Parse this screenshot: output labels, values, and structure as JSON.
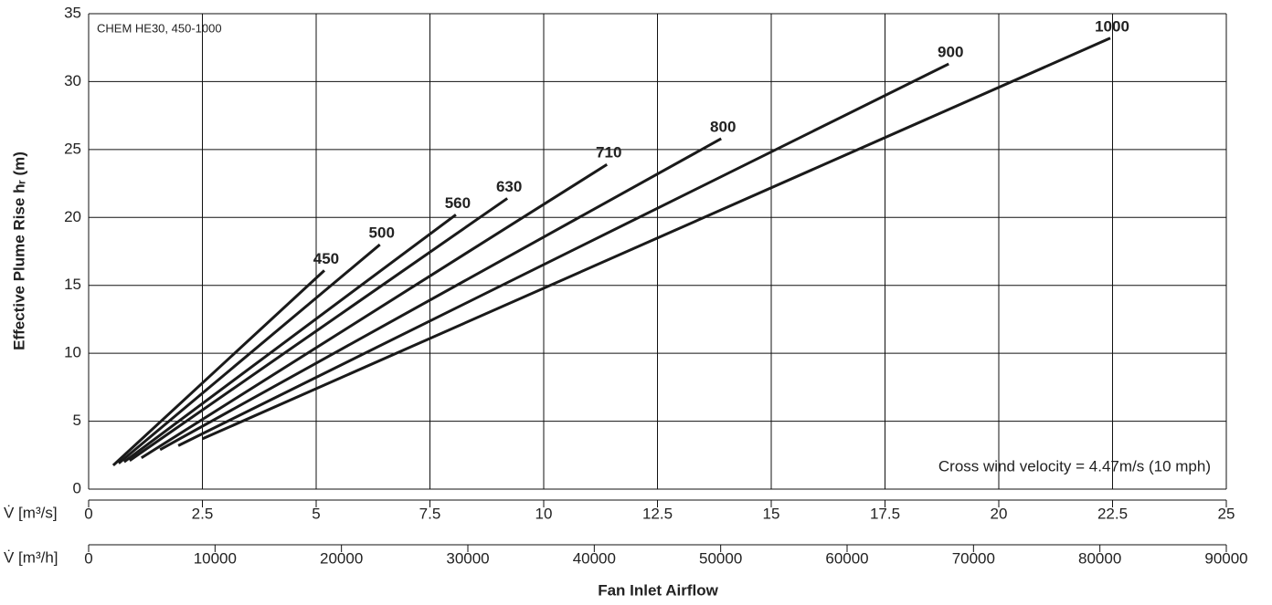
{
  "chart_data": {
    "type": "line",
    "y_label": "Effective Plume Rise hᵣ (m)",
    "x_label": "Fan Inlet Airflow",
    "x_axis_label": "V̇ [m³/s]",
    "x2_axis_label": "V̇ [m³/h]",
    "annotations": [
      "CHEM HE30, 450-1000",
      "Cross wind velocity = 4.47m/s (10 mph)"
    ],
    "xlim": [
      0,
      25
    ],
    "xticks": [
      0,
      2.5,
      5,
      7.5,
      10,
      12.5,
      15,
      17.5,
      20,
      22.5,
      25
    ],
    "x2lim": [
      0,
      90000
    ],
    "x2ticks": [
      0,
      10000,
      20000,
      30000,
      40000,
      50000,
      60000,
      70000,
      80000,
      90000
    ],
    "ylim": [
      0,
      35
    ],
    "yticks": [
      0,
      5,
      10,
      15,
      20,
      25,
      30,
      35
    ],
    "grid": true,
    "series": [
      {
        "name": "450",
        "color": "#1a1a1a",
        "x": [
          0.54,
          5.18
        ],
        "values": [
          1.75,
          16.1
        ]
      },
      {
        "name": "500",
        "color": "#1a1a1a",
        "x": [
          0.66,
          6.4
        ],
        "values": [
          1.9,
          18.0
        ]
      },
      {
        "name": "560",
        "color": "#1a1a1a",
        "x": [
          0.78,
          8.07
        ],
        "values": [
          2.0,
          20.2
        ]
      },
      {
        "name": "630",
        "color": "#1a1a1a",
        "x": [
          0.9,
          9.2
        ],
        "values": [
          2.1,
          21.4
        ]
      },
      {
        "name": "710",
        "color": "#1a1a1a",
        "x": [
          1.16,
          11.39
        ],
        "values": [
          2.3,
          23.9
        ]
      },
      {
        "name": "800",
        "color": "#1a1a1a",
        "x": [
          1.57,
          13.9
        ],
        "values": [
          2.9,
          25.8
        ]
      },
      {
        "name": "900",
        "color": "#1a1a1a",
        "x": [
          1.97,
          18.9
        ],
        "values": [
          3.2,
          31.3
        ]
      },
      {
        "name": "1000",
        "color": "#1a1a1a",
        "x": [
          2.5,
          22.45
        ],
        "values": [
          3.7,
          33.2
        ]
      }
    ]
  }
}
